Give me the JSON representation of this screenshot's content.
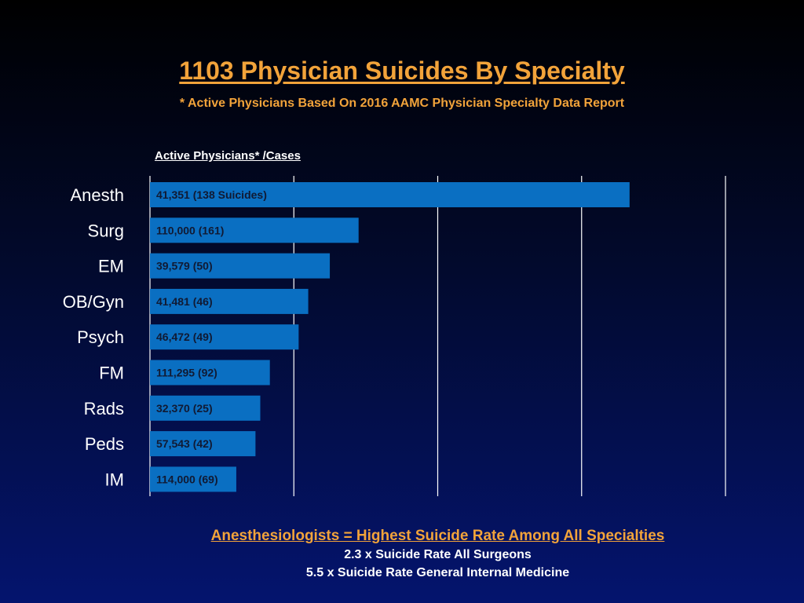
{
  "title": "1103 Physician Suicides By Specialty",
  "subtitle": "* Active Physicians Based On 2016 AAMC Physician Specialty Data Report",
  "colors": {
    "bar": "#0a6fc2",
    "accent": "#f2a33a",
    "grid": "#ffffff"
  },
  "chart_data": {
    "type": "bar",
    "orientation": "horizontal",
    "title": "1103 Physician Suicides By Specialty",
    "column_header": "Active Physicians* /Cases",
    "categories": [
      "Anesth",
      "Surg",
      "EM",
      "OB/Gyn",
      "Psych",
      "FM",
      "Rads",
      "Peds",
      "IM"
    ],
    "values": [
      10,
      4.35,
      3.75,
      3.3,
      3.1,
      2.5,
      2.3,
      2.2,
      1.8
    ],
    "bar_labels": [
      "41,351 (138 Suicides)",
      "110,000 (161)",
      "39,579 (50)",
      "41,481 (46)",
      "46,472 (49)",
      "111,295 (92)",
      "32,370 (25)",
      "57,543 (42)",
      "114,000 (69)"
    ],
    "xlim": [
      0,
      12
    ],
    "grid": true
  },
  "footer": {
    "headline": "Anesthesiologists = Highest Suicide Rate Among All Specialties",
    "line1": "2.3 x Suicide Rate All Surgeons",
    "line2": "5.5 x Suicide Rate General Internal Medicine"
  }
}
